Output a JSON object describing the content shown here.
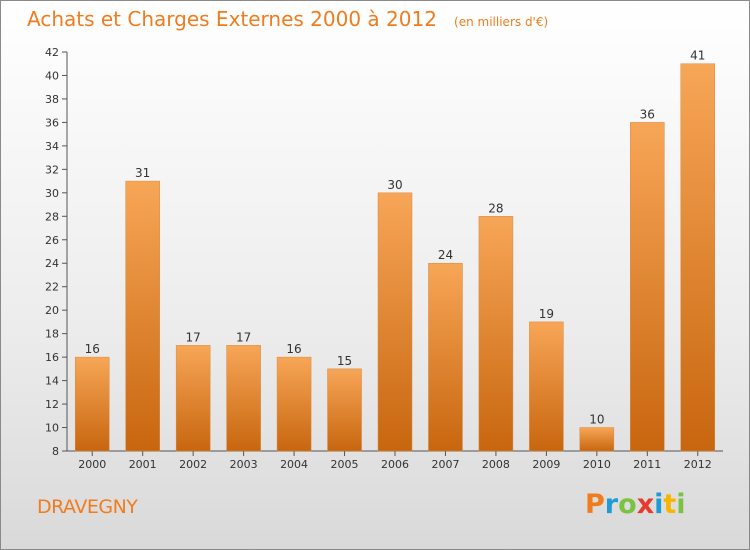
{
  "header": {
    "title": "Achats et Charges Externes 2000 à 2012",
    "subtitle": "(en milliers d'€)"
  },
  "footer": {
    "place_name": "DRAVEGNY",
    "logo_text": "Proxiti",
    "logo_colors": [
      "#f07c1e",
      "#1e9ad6",
      "#7bc142",
      "#e63a2e",
      "#1e9ad6",
      "#f7b500",
      "#7bc142"
    ]
  },
  "colors": {
    "bar_light": "#f7a657",
    "bar_dark": "#c8660f",
    "text_accent": "#f07c1e",
    "axis": "#555555"
  },
  "chart_data": {
    "type": "bar",
    "categories": [
      "2000",
      "2001",
      "2002",
      "2003",
      "2004",
      "2005",
      "2006",
      "2007",
      "2008",
      "2009",
      "2010",
      "2011",
      "2012"
    ],
    "values": [
      16,
      31,
      17,
      17,
      16,
      15,
      30,
      24,
      28,
      19,
      10,
      36,
      41
    ],
    "ylim": [
      8,
      42
    ],
    "yticks": [
      8,
      10,
      12,
      14,
      16,
      18,
      20,
      22,
      24,
      26,
      28,
      30,
      32,
      34,
      36,
      38,
      40,
      42
    ],
    "grid": false,
    "data_labels": true
  }
}
